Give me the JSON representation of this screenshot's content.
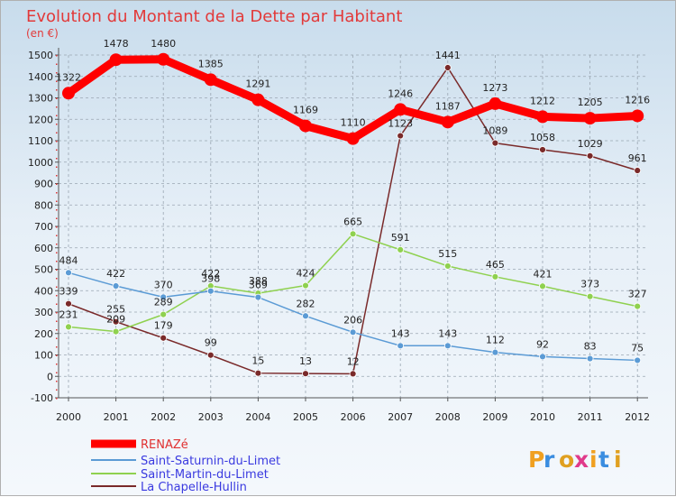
{
  "chart_data": {
    "type": "line",
    "title": "Evolution du Montant de la Dette par Habitant",
    "subtitle": "(en €)",
    "categories": [
      "2000",
      "2001",
      "2002",
      "2003",
      "2004",
      "2005",
      "2006",
      "2007",
      "2008",
      "2009",
      "2010",
      "2011",
      "2012"
    ],
    "y_ticks": [
      -100,
      0,
      100,
      200,
      300,
      400,
      500,
      600,
      700,
      800,
      900,
      1000,
      1100,
      1200,
      1300,
      1400,
      1500
    ],
    "ylim": [
      -100,
      1500
    ],
    "grid": "horizontal dashed",
    "legend_position": "bottom-left",
    "series": [
      {
        "name": "RENAZé",
        "color": "#ff0000",
        "values": [
          1322,
          1478,
          1480,
          1385,
          1291,
          1169,
          1110,
          1246,
          1187,
          1273,
          1212,
          1205,
          1216
        ],
        "labels": [
          "1322",
          "1478",
          "1480",
          "1385",
          "1291",
          "1169",
          "1110",
          "1246",
          "1187",
          "1273",
          "1212",
          "1205",
          "1216"
        ]
      },
      {
        "name": "Saint-Saturnin-du-Limet",
        "color": "#5b9bd5",
        "values": [
          484,
          422,
          370,
          398,
          369,
          282,
          206,
          143,
          143,
          112,
          92,
          83,
          75
        ],
        "labels": [
          "484",
          "422",
          "370",
          "398",
          "369",
          "282",
          "206",
          "143",
          "143",
          "112",
          "92",
          "83",
          "75"
        ]
      },
      {
        "name": "Saint-Martin-du-Limet",
        "color": "#8fd14f",
        "values": [
          231,
          209,
          289,
          422,
          388,
          424,
          665,
          591,
          515,
          465,
          421,
          373,
          327
        ],
        "labels": [
          "231",
          "209",
          "289",
          "422",
          "388",
          "424",
          "665",
          "591",
          "515",
          "465",
          "421",
          "373",
          "327"
        ]
      },
      {
        "name": "La Chapelle-Hullin",
        "color": "#7a2a2a",
        "values": [
          339,
          255,
          179,
          99,
          15,
          13,
          12,
          1123,
          1441,
          1089,
          1058,
          1029,
          961
        ],
        "labels": [
          "339",
          "255",
          "179",
          "99",
          "15",
          "13",
          "12",
          "1123",
          "1441",
          "1089",
          "1058",
          "1029",
          "961"
        ]
      }
    ]
  },
  "logo": {
    "text": "Proxiti"
  }
}
